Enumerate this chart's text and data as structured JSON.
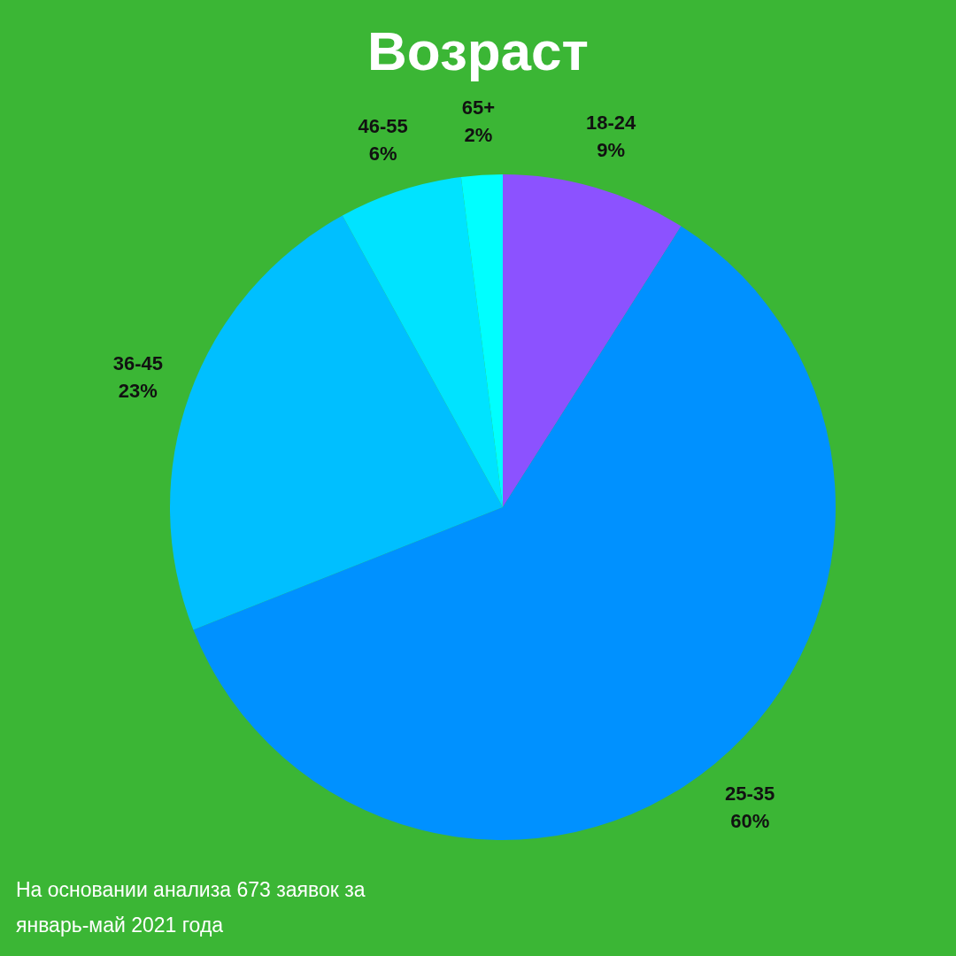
{
  "chart_data": {
    "type": "pie",
    "title": "Возраст",
    "categories": [
      "18-24",
      "25-35",
      "36-45",
      "46-55",
      "65+"
    ],
    "values": [
      9,
      60,
      23,
      6,
      2
    ],
    "colors": [
      "#8c52ff",
      "#0091ff",
      "#00bfff",
      "#00e3ff",
      "#00ffff"
    ],
    "value_labels": [
      "9%",
      "60%",
      "23%",
      "6%",
      "2%"
    ],
    "annotations": [
      "На основании анализа 673 заявок за январь-май 2021 года"
    ]
  }
}
